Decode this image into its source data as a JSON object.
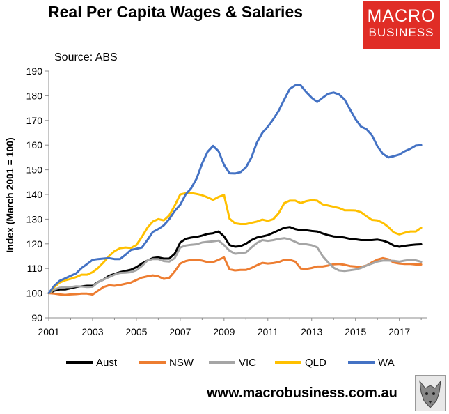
{
  "header": {
    "title": "Real Per Capita Wages & Salaries",
    "logo_line1": "MACRO",
    "logo_line2": "BUSINESS",
    "source": "Source: ABS"
  },
  "footer": {
    "url": "www.macrobusiness.com.au",
    "emblem_icon": "wolf-emblem-icon"
  },
  "chart_data": {
    "type": "line",
    "title": "Real Per Capita Wages & Salaries",
    "xlabel": "",
    "ylabel": "Index (March 2001 = 100)",
    "xlim": [
      2001,
      2018.25
    ],
    "ylim": [
      90,
      190
    ],
    "yticks": [
      90,
      100,
      110,
      120,
      130,
      140,
      150,
      160,
      170,
      180,
      190
    ],
    "xticks": [
      2001,
      2003,
      2005,
      2007,
      2009,
      2011,
      2013,
      2015,
      2017
    ],
    "xtick_labels": [
      "2001",
      "2003",
      "2005",
      "2007",
      "2009",
      "2011",
      "2013",
      "2015",
      "2017"
    ],
    "grid": false,
    "legend": "bottom",
    "x": [
      2001,
      2001.25,
      2001.5,
      2001.75,
      2002,
      2002.25,
      2002.5,
      2002.75,
      2003,
      2003.25,
      2003.5,
      2003.75,
      2004,
      2004.25,
      2004.5,
      2004.75,
      2005,
      2005.25,
      2005.5,
      2005.75,
      2006,
      2006.25,
      2006.5,
      2006.75,
      2007,
      2007.25,
      2007.5,
      2007.75,
      2008,
      2008.25,
      2008.5,
      2008.75,
      2009,
      2009.25,
      2009.5,
      2009.75,
      2010,
      2010.25,
      2010.5,
      2010.75,
      2011,
      2011.25,
      2011.5,
      2011.75,
      2012,
      2012.25,
      2012.5,
      2012.75,
      2013,
      2013.25,
      2013.5,
      2013.75,
      2014,
      2014.25,
      2014.5,
      2014.75,
      2015,
      2015.25,
      2015.5,
      2015.75,
      2016,
      2016.25,
      2016.5,
      2016.75,
      2017,
      2017.25,
      2017.5,
      2017.75,
      2018
    ],
    "series": [
      {
        "name": "Aust",
        "color": "#000000",
        "values": [
          100,
          101,
          101.5,
          101.5,
          102,
          102.5,
          102.8,
          103,
          103,
          104.5,
          105.5,
          107,
          107.8,
          108.5,
          109,
          109.5,
          110.5,
          112,
          113.2,
          114.2,
          114.5,
          114,
          114,
          116,
          120.5,
          122,
          122.5,
          122.8,
          123.3,
          124,
          124.3,
          125,
          123,
          119.5,
          118.8,
          119,
          120,
          121.5,
          122.5,
          123,
          123.5,
          124.5,
          125.5,
          126.5,
          126.8,
          126,
          125.5,
          125.5,
          125.2,
          125,
          124.2,
          123.5,
          123,
          122.8,
          122.5,
          122,
          121.8,
          121.5,
          121.5,
          121.5,
          121.7,
          121.3,
          120.5,
          119.3,
          118.8,
          119.2,
          119.5,
          119.7,
          119.8
        ]
      },
      {
        "name": "NSW",
        "color": "#ed7d31",
        "values": [
          100,
          99.8,
          99.5,
          99.3,
          99.5,
          99.6,
          99.8,
          99.8,
          99.4,
          101,
          102.5,
          103.2,
          103,
          103.3,
          103.8,
          104.3,
          105.3,
          106.3,
          106.8,
          107.2,
          106.8,
          105.8,
          106.2,
          108.8,
          112,
          113,
          113.5,
          113.5,
          113.2,
          112.6,
          112.6,
          113.5,
          114.5,
          109.7,
          109.2,
          109.4,
          109.4,
          110.2,
          111.3,
          112.3,
          112,
          112.2,
          112.6,
          113.5,
          113.5,
          112.8,
          110,
          109.8,
          110.2,
          110.8,
          110.8,
          111.2,
          111.7,
          111.8,
          111.5,
          111,
          110.8,
          110.6,
          111.2,
          112.5,
          113.6,
          114.2,
          113.7,
          112.4,
          112,
          111.8,
          111.8,
          111.6,
          111.6
        ]
      },
      {
        "name": "VIC",
        "color": "#a5a5a5",
        "values": [
          100,
          101.5,
          102.2,
          102.4,
          102.5,
          102.8,
          102.7,
          102.5,
          102.6,
          104.4,
          105.5,
          106.5,
          107.5,
          108.2,
          108.3,
          108.5,
          109.3,
          111,
          113.2,
          113.8,
          113.8,
          113,
          112.8,
          114.2,
          118.5,
          119.3,
          119.6,
          119.8,
          120.5,
          120.8,
          121,
          121.3,
          119.5,
          117.2,
          116,
          116.2,
          116.5,
          118.5,
          120.3,
          121.5,
          121.2,
          121.5,
          122,
          122.3,
          121.8,
          120.8,
          119.8,
          119.8,
          119.4,
          118.6,
          115,
          112.5,
          110.3,
          109.2,
          109,
          109.3,
          109.6,
          110.2,
          111.2,
          112,
          112.8,
          113.2,
          113.2,
          113.1,
          112.8,
          113.2,
          113.5,
          113.3,
          112.7
        ]
      },
      {
        "name": "QLD",
        "color": "#ffc000",
        "values": [
          100,
          102.5,
          104.3,
          105.2,
          105.8,
          106.5,
          107.5,
          107.5,
          108.5,
          110.2,
          112.5,
          115,
          117,
          118.2,
          118.5,
          118.3,
          119.5,
          122.8,
          126.5,
          129,
          130,
          129.5,
          131.5,
          135.5,
          140,
          140.5,
          140.6,
          140.2,
          139.7,
          138.8,
          137.8,
          139,
          139.8,
          130.2,
          128.3,
          128,
          128,
          128.5,
          129,
          129.8,
          129.3,
          130,
          132.5,
          136.5,
          137.5,
          137.5,
          136.5,
          137.3,
          137.7,
          137.5,
          136,
          135.5,
          135,
          134.5,
          133.6,
          133.6,
          133.5,
          132.8,
          131.2,
          129.7,
          129.5,
          128.5,
          126.8,
          124.6,
          123.8,
          124.5,
          125,
          125,
          126.5
        ]
      },
      {
        "name": "WA",
        "color": "#4472c4",
        "values": [
          100,
          103,
          105,
          106,
          107,
          108,
          110.2,
          111.8,
          113.5,
          113.8,
          114,
          114.2,
          113.8,
          113.8,
          115.5,
          117.5,
          118,
          118.5,
          121.5,
          124.8,
          126,
          127.5,
          130,
          133.3,
          135.8,
          140,
          142.5,
          146.5,
          152.5,
          157.3,
          159.7,
          157.5,
          152,
          148.6,
          148.5,
          149,
          151,
          155,
          161,
          165,
          167.5,
          170.5,
          174,
          178.5,
          182.8,
          184.2,
          184.2,
          181.5,
          179.2,
          177.5,
          179.2,
          180.8,
          181.3,
          180.5,
          178.5,
          174.5,
          170.5,
          167.5,
          166.5,
          164,
          159.5,
          156.5,
          155,
          155.5,
          156.2,
          157.5,
          158.5,
          159.8,
          160
        ]
      }
    ]
  }
}
